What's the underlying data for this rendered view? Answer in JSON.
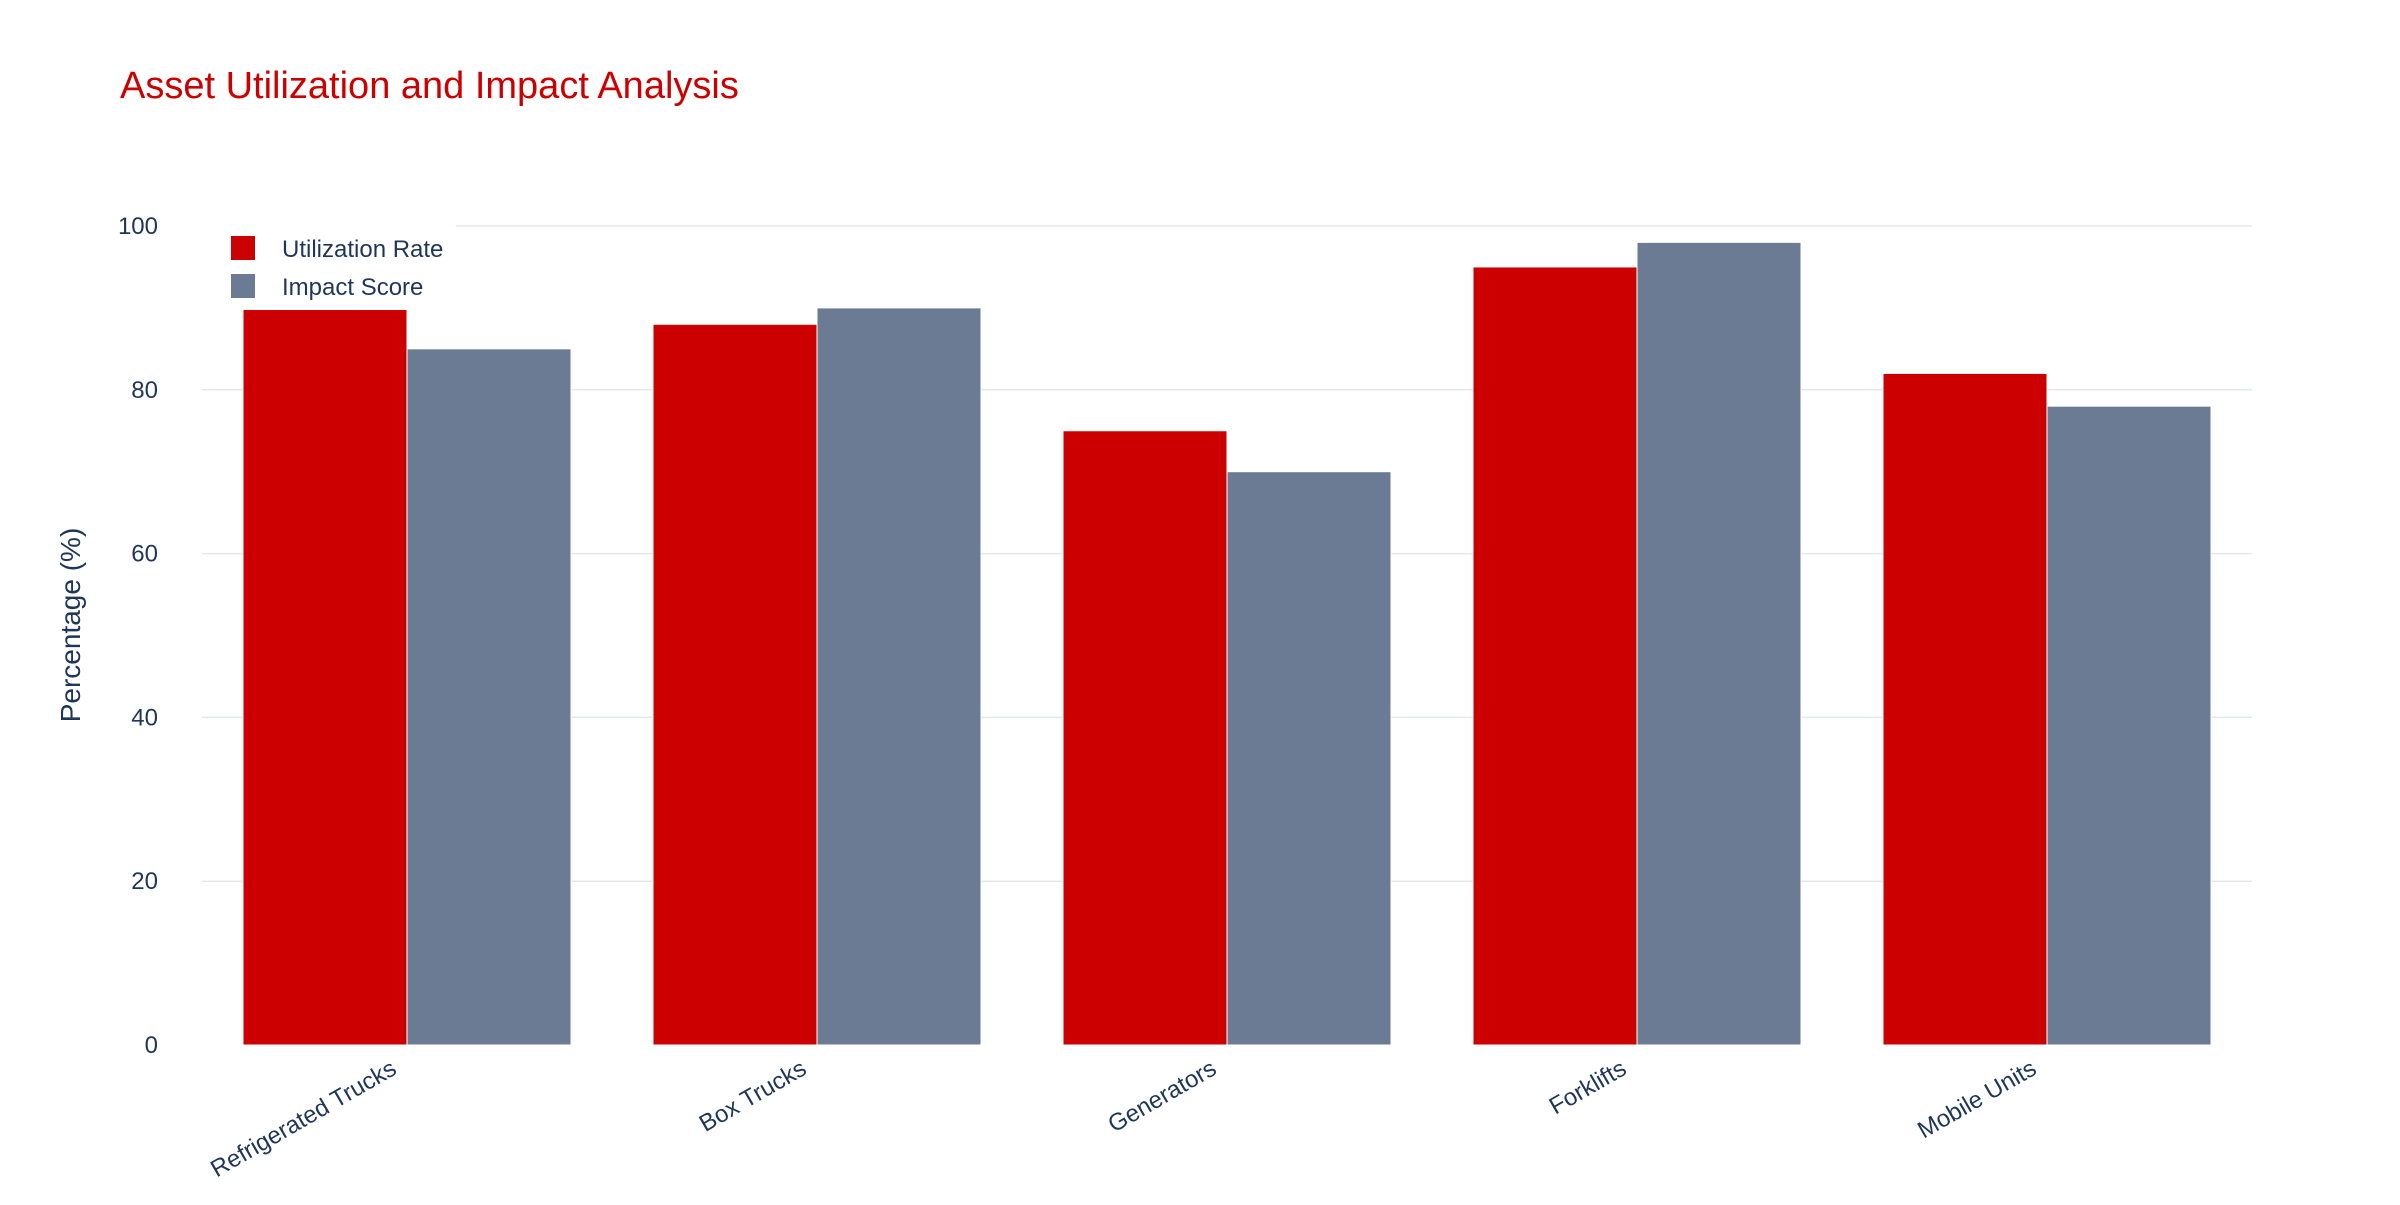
{
  "chart_data": {
    "type": "bar",
    "title": "Asset Utilization and Impact Analysis",
    "xlabel": "",
    "ylabel": "Percentage (%)",
    "categories": [
      "Refrigerated Trucks",
      "Box Trucks",
      "Generators",
      "Forklifts",
      "Mobile Units"
    ],
    "series": [
      {
        "name": "Utilization Rate",
        "color": "#cc0000",
        "values": [
          92,
          88,
          75,
          95,
          82
        ]
      },
      {
        "name": "Impact Score",
        "color": "#6b7b93",
        "values": [
          85,
          90,
          70,
          98,
          78
        ]
      }
    ],
    "ylim": [
      0,
      100
    ],
    "yticks": [
      "0",
      "20",
      "40",
      "60",
      "80",
      "100"
    ],
    "grid": true,
    "legend_position": "top-left",
    "colors": {
      "title": "#cc0000",
      "text": "#1f3659",
      "grid": "#e3e7ee"
    }
  }
}
